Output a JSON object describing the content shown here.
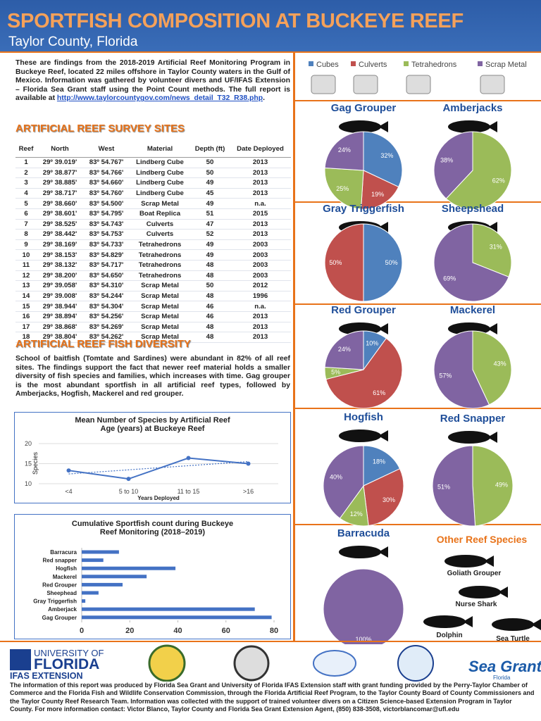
{
  "header": {
    "title": "SPORTFISH COMPOSITION AT BUCKEYE REEF",
    "subtitle": "Taylor County, Florida"
  },
  "intro": {
    "text": "These are findings from the 2018-2019 Artificial Reef Monitoring Program in Buckeye Reef, located 22 miles offshore in Taylor County waters in the Gulf of Mexico. Information was gathered by volunteer divers and UF/IFAS Extension – Florida Sea Grant staff using the Point Count methods. The full report is available at ",
    "link": "http://www.taylorcountygov.com/news_detail_T32_R38.php",
    "end": "."
  },
  "sites_heading": "ARTIFICIAL REEF SURVEY SITES",
  "table": {
    "columns": [
      "Reef",
      "North",
      "West",
      "Material",
      "Depth (ft)",
      "Date Deployed"
    ],
    "rows": [
      [
        1,
        "29º 39.019'",
        "83º 54.767'",
        "Lindberg Cube",
        50,
        2013
      ],
      [
        2,
        "29º 38.877'",
        "83º 54.766'",
        "Lindberg Cube",
        50,
        2013
      ],
      [
        3,
        "29º 38.885'",
        "83º 54.660'",
        "Lindberg Cube",
        49,
        2013
      ],
      [
        4,
        "29º 38.717'",
        "83º 54.760'",
        "Lindberg Cube",
        45,
        2013
      ],
      [
        5,
        "29º 38.660'",
        "83º 54.500'",
        "Scrap Metal",
        49,
        "n.a."
      ],
      [
        6,
        "29º 38.601'",
        "83º 54.795'",
        "Boat Replica",
        51,
        2015
      ],
      [
        7,
        "29º 38.525'",
        "83º 54.743'",
        "Culverts",
        47,
        2013
      ],
      [
        8,
        "29º 38.442'",
        "83º 54.753'",
        "Culverts",
        52,
        2013
      ],
      [
        9,
        "29º 38.169'",
        "83º 54.733'",
        "Tetrahedrons",
        49,
        2003
      ],
      [
        10,
        "29º 38.153'",
        "83º 54.829'",
        "Tetrahedrons",
        49,
        2003
      ],
      [
        11,
        "29º 38.132'",
        "83º 54.717'",
        "Tetrahedrons",
        48,
        2003
      ],
      [
        12,
        "29º 38.200'",
        "83º 54.650'",
        "Tetrahedrons",
        48,
        2003
      ],
      [
        13,
        "29º 39.058'",
        "83º 54.310'",
        "Scrap Metal",
        50,
        2012
      ],
      [
        14,
        "29º 39.008'",
        "83º 54.244'",
        "Scrap Metal",
        48,
        1996
      ],
      [
        15,
        "29º 38.944'",
        "83º 54.304'",
        "Scrap Metal",
        46,
        "n.a."
      ],
      [
        16,
        "29º 38.894'",
        "83º 54.256'",
        "Scrap Metal",
        46,
        2013
      ],
      [
        17,
        "29º 38.868'",
        "83º 54.269'",
        "Scrap Metal",
        48,
        2013
      ],
      [
        18,
        "29º 38.804'",
        "83º 54.262'",
        "Scrap Metal",
        48,
        2013
      ]
    ]
  },
  "diversity_heading": "ARTIFICIAL REEF FISH DIVERSITY",
  "diversity_text": "School of baitfish (Tomtate and Sardines) were abundant in 82% of all reef sites. The findings support the fact that newer reef material holds a smaller diversity of fish species and families, which increases with time. Gag grouper is the most abundant sportfish in all artificial reef types, followed by Amberjacks, Hogfish, Mackerel and red grouper.",
  "legend": {
    "items": [
      {
        "name": "Cubes",
        "color": "#4f81bd"
      },
      {
        "name": "Culverts",
        "color": "#c0504d"
      },
      {
        "name": "Tetrahedrons",
        "color": "#9bbb59"
      },
      {
        "name": "Scrap Metal",
        "color": "#8064a2"
      }
    ]
  },
  "chart_data": [
    {
      "type": "line",
      "title": "Mean Number of Species by Artificial Reef Age (years) at Buckeye Reef",
      "categories": [
        "<4",
        "5 to 10",
        "11 to 15",
        ">16"
      ],
      "series": [
        {
          "name": "Species",
          "color": "#4472c4",
          "values": [
            13.3,
            11.2,
            16.4,
            15
          ]
        }
      ],
      "ylim": [
        10,
        20
      ],
      "yticks": [
        10,
        15,
        20
      ],
      "ylabel": "Species",
      "xlabel": "Years Deployed",
      "trendline": true,
      "grid": true
    },
    {
      "type": "bar",
      "orientation": "horizontal",
      "title": "Cumulative Sportfish count during Buckeye Reef Monitoring (2018–2019)",
      "categories": [
        "Barracura",
        "Red snapper",
        "Hogfish",
        "Mackerel",
        "Red Grouper",
        "Sheephead",
        "Gray Triggerfish",
        "Amberjack",
        "Gag Grouper"
      ],
      "values": [
        15.5,
        9,
        39,
        27,
        17,
        7,
        1.5,
        72,
        79
      ],
      "color": "#4472c4",
      "xlim": [
        0,
        80
      ],
      "xticks": [
        0,
        20,
        40,
        60,
        80
      ]
    },
    {
      "type": "pie",
      "title": "Gag Grouper",
      "values": [
        32,
        19,
        25,
        24
      ],
      "value_labels": [
        "32%",
        "19%",
        "25%",
        "24%"
      ]
    },
    {
      "type": "pie",
      "title": "Amberjacks",
      "values": [
        null,
        null,
        62,
        38
      ],
      "value_labels": [
        null,
        null,
        "62%",
        "38%"
      ]
    },
    {
      "type": "pie",
      "title": "Gray Triggerfish",
      "values": [
        50,
        50,
        null,
        null
      ],
      "value_labels": [
        "50%",
        "50%",
        null,
        null
      ]
    },
    {
      "type": "pie",
      "title": "Sheepshead",
      "values": [
        null,
        null,
        31,
        69
      ],
      "value_labels": [
        null,
        null,
        "31%",
        "69%"
      ]
    },
    {
      "type": "pie",
      "title": "Red Grouper",
      "values": [
        10,
        61,
        5,
        24
      ],
      "value_labels": [
        "10%",
        "61%",
        "5%",
        "24%"
      ]
    },
    {
      "type": "pie",
      "title": "Mackerel",
      "values": [
        null,
        null,
        43,
        57
      ],
      "value_labels": [
        null,
        null,
        "43%",
        "57%"
      ]
    },
    {
      "type": "pie",
      "title": "Hogfish",
      "values": [
        18,
        30,
        12,
        40
      ],
      "value_labels": [
        "18%",
        "30%",
        "12%",
        "40%"
      ]
    },
    {
      "type": "pie",
      "title": "Red Snapper",
      "values": [
        null,
        null,
        49,
        51
      ],
      "value_labels": [
        null,
        null,
        "49%",
        "51%"
      ]
    },
    {
      "type": "pie",
      "title": "Barracuda",
      "values": [
        null,
        null,
        null,
        100
      ],
      "value_labels": [
        null,
        null,
        null,
        "100%"
      ]
    }
  ],
  "other_species": {
    "title": "Other Reef Species",
    "items": [
      "Goliath Grouper",
      "Nurse Shark",
      "Dolphin",
      "Sea Turtle"
    ]
  },
  "logos": {
    "uf_line1": "UNIVERSITY OF",
    "uf_line2": "FLORIDA",
    "uf_line3": "IFAS EXTENSION",
    "seagrant": "Sea Grant",
    "seagrant_sub": "Florida"
  },
  "footer": "The information of this report was produced by Florida Sea Grant and University of Florida IFAS Extension staff with grant funding provided by the Perry-Taylor Chamber of Commerce and the Florida Fish and Wildlife Conservation Commission, through the Florida Artificial Reef Program, to the Taylor County Board of County Commissioners and the Taylor County Reef Research Team. Information was collected  with the support of trained volunteer divers on a Citizen Science-based Extension Program in Taylor County. For more information contact: Victor Blanco, Taylor County and Florida Sea Grant Extension Agent, (850) 838-3508, victorblancomar@ufl.edu"
}
